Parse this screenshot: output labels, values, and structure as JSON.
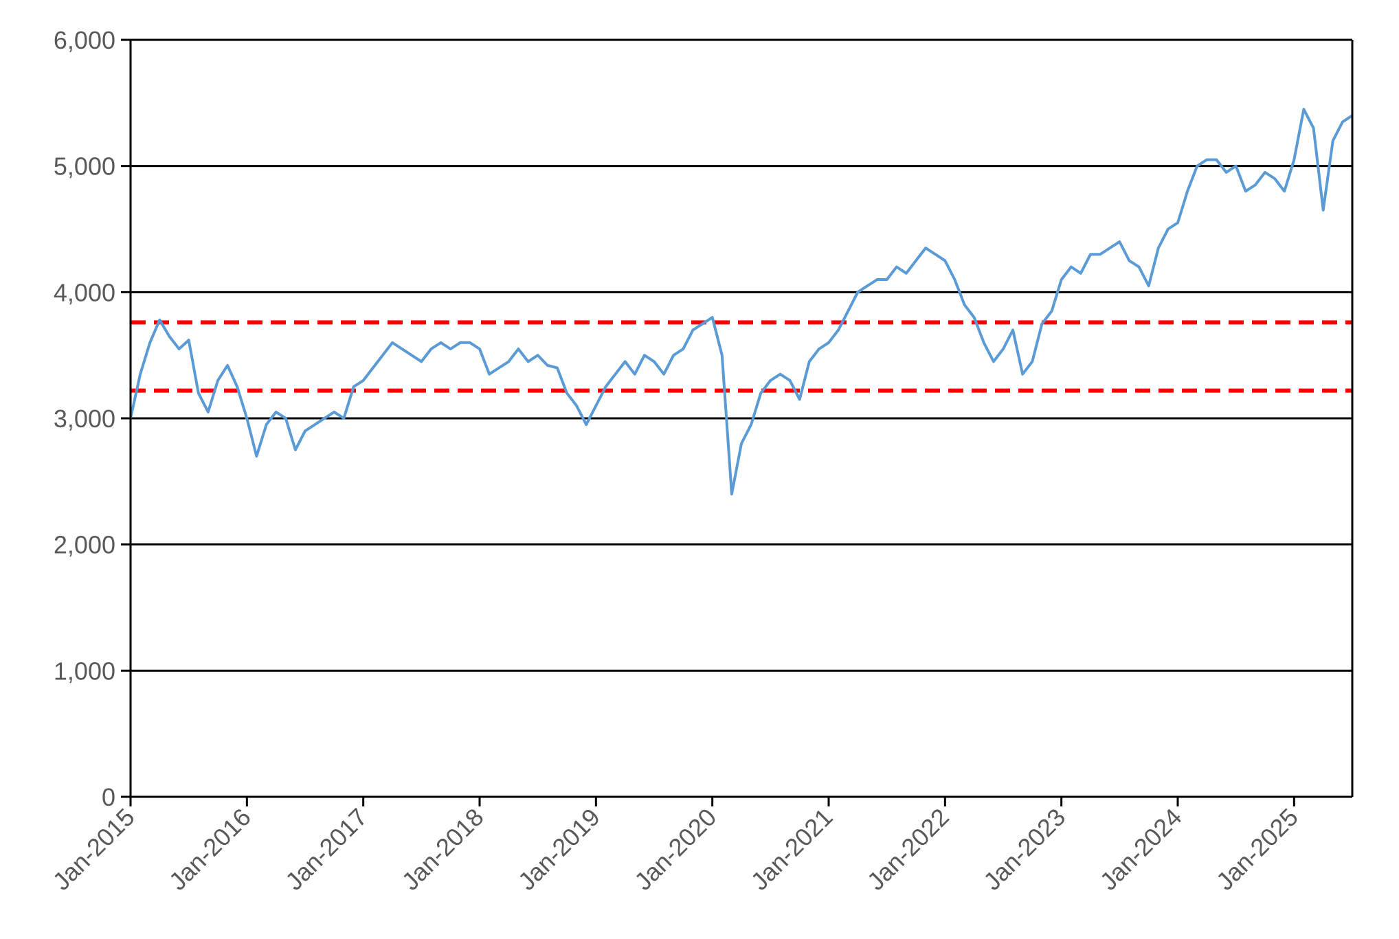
{
  "chart_data": {
    "type": "line",
    "title": "",
    "xlabel": "",
    "ylabel": "",
    "ylim": [
      0,
      6000
    ],
    "y_ticks": [
      {
        "value": 0,
        "label": "0"
      },
      {
        "value": 1000,
        "label": "1,000"
      },
      {
        "value": 2000,
        "label": "2,000"
      },
      {
        "value": 3000,
        "label": "3,000"
      },
      {
        "value": 4000,
        "label": "4,000"
      },
      {
        "value": 5000,
        "label": "5,000"
      },
      {
        "value": 6000,
        "label": "6,000"
      }
    ],
    "x_range": [
      "2015-01",
      "2025-07"
    ],
    "x_ticks": [
      "Jan-2015",
      "Jan-2016",
      "Jan-2017",
      "Jan-2018",
      "Jan-2019",
      "Jan-2020",
      "Jan-2021",
      "Jan-2022",
      "Jan-2023",
      "Jan-2024",
      "Jan-2025"
    ],
    "grid": "horizontal",
    "legend": "none",
    "series": [
      {
        "color": "#5b9bd5",
        "points": [
          [
            "2015-01",
            3000
          ],
          [
            "2015-02",
            3350
          ],
          [
            "2015-03",
            3600
          ],
          [
            "2015-04",
            3780
          ],
          [
            "2015-05",
            3650
          ],
          [
            "2015-06",
            3550
          ],
          [
            "2015-07",
            3620
          ],
          [
            "2015-08",
            3200
          ],
          [
            "2015-09",
            3050
          ],
          [
            "2015-10",
            3300
          ],
          [
            "2015-11",
            3420
          ],
          [
            "2015-12",
            3250
          ],
          [
            "2016-01",
            3000
          ],
          [
            "2016-02",
            2700
          ],
          [
            "2016-03",
            2950
          ],
          [
            "2016-04",
            3050
          ],
          [
            "2016-05",
            3000
          ],
          [
            "2016-06",
            2750
          ],
          [
            "2016-07",
            2900
          ],
          [
            "2016-08",
            2950
          ],
          [
            "2016-09",
            3000
          ],
          [
            "2016-10",
            3050
          ],
          [
            "2016-11",
            3000
          ],
          [
            "2016-12",
            3250
          ],
          [
            "2017-01",
            3300
          ],
          [
            "2017-02",
            3400
          ],
          [
            "2017-03",
            3500
          ],
          [
            "2017-04",
            3600
          ],
          [
            "2017-05",
            3550
          ],
          [
            "2017-06",
            3500
          ],
          [
            "2017-07",
            3450
          ],
          [
            "2017-08",
            3550
          ],
          [
            "2017-09",
            3600
          ],
          [
            "2017-10",
            3550
          ],
          [
            "2017-11",
            3600
          ],
          [
            "2017-12",
            3600
          ],
          [
            "2018-01",
            3550
          ],
          [
            "2018-02",
            3350
          ],
          [
            "2018-03",
            3400
          ],
          [
            "2018-04",
            3450
          ],
          [
            "2018-05",
            3550
          ],
          [
            "2018-06",
            3450
          ],
          [
            "2018-07",
            3500
          ],
          [
            "2018-08",
            3420
          ],
          [
            "2018-09",
            3400
          ],
          [
            "2018-10",
            3200
          ],
          [
            "2018-11",
            3100
          ],
          [
            "2018-12",
            2950
          ],
          [
            "2019-01",
            3100
          ],
          [
            "2019-02",
            3250
          ],
          [
            "2019-03",
            3350
          ],
          [
            "2019-04",
            3450
          ],
          [
            "2019-05",
            3350
          ],
          [
            "2019-06",
            3500
          ],
          [
            "2019-07",
            3450
          ],
          [
            "2019-08",
            3350
          ],
          [
            "2019-09",
            3500
          ],
          [
            "2019-10",
            3550
          ],
          [
            "2019-11",
            3700
          ],
          [
            "2019-12",
            3750
          ],
          [
            "2020-01",
            3800
          ],
          [
            "2020-02",
            3500
          ],
          [
            "2020-03",
            2400
          ],
          [
            "2020-04",
            2800
          ],
          [
            "2020-05",
            2950
          ],
          [
            "2020-06",
            3200
          ],
          [
            "2020-07",
            3300
          ],
          [
            "2020-08",
            3350
          ],
          [
            "2020-09",
            3300
          ],
          [
            "2020-10",
            3150
          ],
          [
            "2020-11",
            3450
          ],
          [
            "2020-12",
            3550
          ],
          [
            "2021-01",
            3600
          ],
          [
            "2021-02",
            3700
          ],
          [
            "2021-03",
            3850
          ],
          [
            "2021-04",
            4000
          ],
          [
            "2021-05",
            4050
          ],
          [
            "2021-06",
            4100
          ],
          [
            "2021-07",
            4100
          ],
          [
            "2021-08",
            4200
          ],
          [
            "2021-09",
            4150
          ],
          [
            "2021-10",
            4250
          ],
          [
            "2021-11",
            4350
          ],
          [
            "2021-12",
            4300
          ],
          [
            "2022-01",
            4250
          ],
          [
            "2022-02",
            4100
          ],
          [
            "2022-03",
            3900
          ],
          [
            "2022-04",
            3800
          ],
          [
            "2022-05",
            3600
          ],
          [
            "2022-06",
            3450
          ],
          [
            "2022-07",
            3550
          ],
          [
            "2022-08",
            3700
          ],
          [
            "2022-09",
            3350
          ],
          [
            "2022-10",
            3450
          ],
          [
            "2022-11",
            3750
          ],
          [
            "2022-12",
            3850
          ],
          [
            "2023-01",
            4100
          ],
          [
            "2023-02",
            4200
          ],
          [
            "2023-03",
            4150
          ],
          [
            "2023-04",
            4300
          ],
          [
            "2023-05",
            4300
          ],
          [
            "2023-06",
            4350
          ],
          [
            "2023-07",
            4400
          ],
          [
            "2023-08",
            4250
          ],
          [
            "2023-09",
            4200
          ],
          [
            "2023-10",
            4050
          ],
          [
            "2023-11",
            4350
          ],
          [
            "2023-12",
            4500
          ],
          [
            "2024-01",
            4550
          ],
          [
            "2024-02",
            4800
          ],
          [
            "2024-03",
            5000
          ],
          [
            "2024-04",
            5050
          ],
          [
            "2024-05",
            5050
          ],
          [
            "2024-06",
            4950
          ],
          [
            "2024-07",
            5000
          ],
          [
            "2024-08",
            4800
          ],
          [
            "2024-09",
            4850
          ],
          [
            "2024-10",
            4950
          ],
          [
            "2024-11",
            4900
          ],
          [
            "2024-12",
            4800
          ],
          [
            "2025-01",
            5050
          ],
          [
            "2025-02",
            5450
          ],
          [
            "2025-03",
            5300
          ],
          [
            "2025-04",
            4650
          ],
          [
            "2025-05",
            5200
          ],
          [
            "2025-06",
            5350
          ],
          [
            "2025-07",
            5400
          ]
        ]
      }
    ],
    "reference_lines": [
      {
        "value": 3760,
        "style": "dashed",
        "color": "#ff0000"
      },
      {
        "value": 3220,
        "style": "dashed",
        "color": "#ff0000"
      }
    ]
  }
}
